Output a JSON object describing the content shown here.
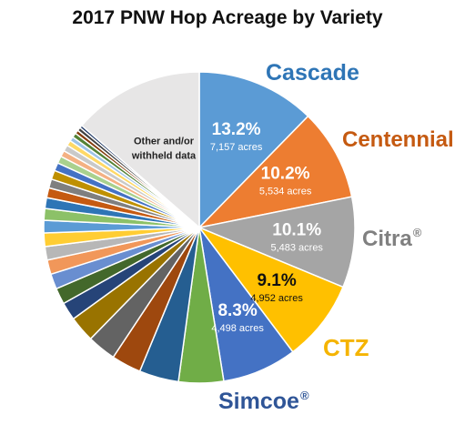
{
  "chart_data": {
    "type": "pie",
    "title": "2017 PNW Hop Acreage by Variety",
    "slices": [
      {
        "key": "cascade",
        "label": "Cascade",
        "percent_label": "13.2%",
        "value": 7157,
        "unit_label": "acres",
        "color": "#5B9BD5",
        "label_color": "#2E75B6"
      },
      {
        "key": "centennial",
        "label": "Centennial",
        "percent_label": "10.2%",
        "value": 5534,
        "unit_label": "acres",
        "color": "#ED7D31",
        "label_color": "#C55A11"
      },
      {
        "key": "citra",
        "label": "Citra",
        "mark": "®",
        "percent_label": "10.1%",
        "value": 5483,
        "unit_label": "acres",
        "color": "#A5A5A5",
        "label_color": "#808080"
      },
      {
        "key": "ctz",
        "label": "CTZ",
        "percent_label": "9.1%",
        "value": 4952,
        "unit_label": "acres",
        "color": "#FFC000",
        "label_color": "#F5B400"
      },
      {
        "key": "simcoe",
        "label": "Simcoe",
        "mark": "®",
        "percent_label": "8.3%",
        "value": 4498,
        "unit_label": "acres",
        "color": "#4472C4",
        "label_color": "#2F5597"
      }
    ],
    "other_slice": {
      "label_line1": "Other and/or",
      "label_line2": "withheld data",
      "percent": 14.6,
      "color": "#E7E6E6"
    },
    "minor_slices": [
      {
        "percent": 5.0,
        "color": "#70AD47"
      },
      {
        "percent": 4.4,
        "color": "#255E91"
      },
      {
        "percent": 3.3,
        "color": "#9E480E"
      },
      {
        "percent": 3.2,
        "color": "#636363"
      },
      {
        "percent": 2.9,
        "color": "#997300"
      },
      {
        "percent": 2.0,
        "color": "#264478"
      },
      {
        "percent": 1.8,
        "color": "#43682B"
      },
      {
        "percent": 1.7,
        "color": "#698ED0"
      },
      {
        "percent": 1.6,
        "color": "#F1975A"
      },
      {
        "percent": 1.5,
        "color": "#B7B7B7"
      },
      {
        "percent": 1.5,
        "color": "#FFCD33"
      },
      {
        "percent": 1.4,
        "color": "#5B9BD5"
      },
      {
        "percent": 1.3,
        "color": "#8CC168"
      },
      {
        "percent": 1.2,
        "color": "#2E75B6"
      },
      {
        "percent": 1.1,
        "color": "#C55A11"
      },
      {
        "percent": 1.0,
        "color": "#7F7F7F"
      },
      {
        "percent": 1.0,
        "color": "#BF9000"
      },
      {
        "percent": 0.9,
        "color": "#4472C4"
      },
      {
        "percent": 0.8,
        "color": "#A9D18E"
      },
      {
        "percent": 0.7,
        "color": "#F4B183"
      },
      {
        "percent": 0.7,
        "color": "#C9C9C9"
      },
      {
        "percent": 0.6,
        "color": "#FFD966"
      },
      {
        "percent": 0.5,
        "color": "#9DC3E6"
      },
      {
        "percent": 0.5,
        "color": "#548235"
      },
      {
        "percent": 0.4,
        "color": "#843C0C"
      },
      {
        "percent": 0.4,
        "color": "#404040"
      },
      {
        "percent": 0.3,
        "color": "#1F3864"
      }
    ]
  }
}
